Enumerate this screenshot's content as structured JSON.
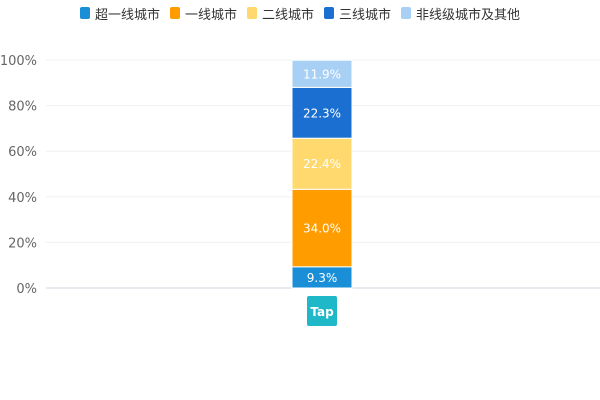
{
  "chart_data": {
    "type": "bar",
    "stacked": true,
    "percent": true,
    "categories": [
      "Tap"
    ],
    "category_logo": {
      "text": "Tap",
      "color": "#1eb8c8"
    },
    "ylim": [
      0,
      100
    ],
    "yticks": [
      "0%",
      "20%",
      "40%",
      "60%",
      "80%",
      "100%"
    ],
    "grid": true,
    "legend_position": "top",
    "series": [
      {
        "name": "超一线城市",
        "values": [
          9.3
        ],
        "label": "9.3%",
        "color": "#1a8fd8"
      },
      {
        "name": "一线城市",
        "values": [
          34.0
        ],
        "label": "34.0%",
        "color": "#ff9c00"
      },
      {
        "name": "二线城市",
        "values": [
          22.4
        ],
        "label": "22.4%",
        "color": "#ffd86e"
      },
      {
        "name": "三线城市",
        "values": [
          22.3
        ],
        "label": "22.3%",
        "color": "#1a6fd0"
      },
      {
        "name": "非线级城市及其他",
        "values": [
          11.9
        ],
        "label": "11.9%",
        "color": "#a8d0f5"
      }
    ]
  }
}
